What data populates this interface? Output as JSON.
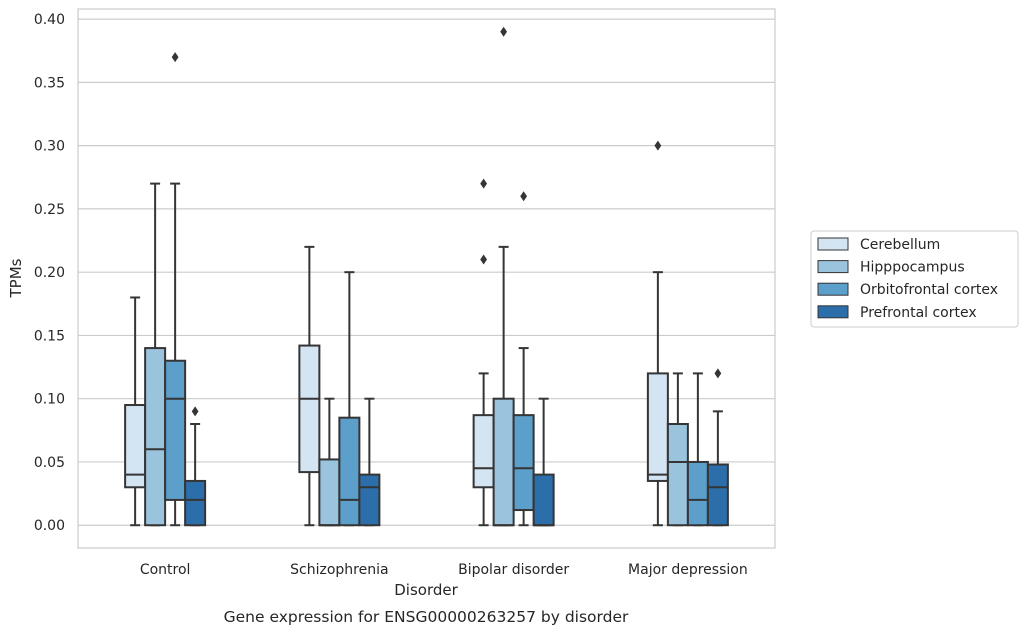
{
  "chart_data": {
    "type": "box",
    "title": "",
    "caption": "Gene expression for ENSG00000263257 by disorder",
    "xlabel": "Disorder",
    "ylabel": "TPMs",
    "ylim": [
      -0.018,
      0.408
    ],
    "yticks": [
      0.0,
      0.05,
      0.1,
      0.15,
      0.2,
      0.25,
      0.3,
      0.35,
      0.4
    ],
    "ytick_labels": [
      "0.00",
      "0.05",
      "0.10",
      "0.15",
      "0.20",
      "0.25",
      "0.30",
      "0.35",
      "0.40"
    ],
    "grid": true,
    "legend_position": "right",
    "categories": [
      "Control",
      "Schizophrenia",
      "Bipolar disorder",
      "Major depression"
    ],
    "series": [
      {
        "name": "Cerebellum",
        "color": "#d3e4f3",
        "boxes": [
          {
            "whislo": 0.0,
            "q1": 0.03,
            "med": 0.04,
            "q3": 0.095,
            "whishi": 0.18,
            "fliers": []
          },
          {
            "whislo": 0.0,
            "q1": 0.042,
            "med": 0.1,
            "q3": 0.142,
            "whishi": 0.22,
            "fliers": []
          },
          {
            "whislo": 0.0,
            "q1": 0.03,
            "med": 0.045,
            "q3": 0.087,
            "whishi": 0.12,
            "fliers": [
              0.21,
              0.27
            ]
          },
          {
            "whislo": 0.0,
            "q1": 0.035,
            "med": 0.04,
            "q3": 0.12,
            "whishi": 0.2,
            "fliers": [
              0.3
            ]
          }
        ]
      },
      {
        "name": "Hipppocampus",
        "color": "#9ac4de",
        "boxes": [
          {
            "whislo": 0.0,
            "q1": 0.0,
            "med": 0.06,
            "q3": 0.14,
            "whishi": 0.27,
            "fliers": []
          },
          {
            "whislo": 0.0,
            "q1": 0.0,
            "med": 0.0,
            "q3": 0.052,
            "whishi": 0.1,
            "fliers": []
          },
          {
            "whislo": 0.0,
            "q1": 0.0,
            "med": 0.0,
            "q3": 0.1,
            "whishi": 0.22,
            "fliers": [
              0.39
            ]
          },
          {
            "whislo": 0.0,
            "q1": 0.0,
            "med": 0.05,
            "q3": 0.08,
            "whishi": 0.12,
            "fliers": []
          }
        ]
      },
      {
        "name": "Orbitofrontal cortex",
        "color": "#5b9fca",
        "boxes": [
          {
            "whislo": 0.0,
            "q1": 0.02,
            "med": 0.1,
            "q3": 0.13,
            "whishi": 0.27,
            "fliers": [
              0.37
            ]
          },
          {
            "whislo": 0.0,
            "q1": 0.0,
            "med": 0.02,
            "q3": 0.085,
            "whishi": 0.2,
            "fliers": []
          },
          {
            "whislo": 0.0,
            "q1": 0.012,
            "med": 0.045,
            "q3": 0.087,
            "whishi": 0.14,
            "fliers": [
              0.26
            ]
          },
          {
            "whislo": 0.0,
            "q1": 0.0,
            "med": 0.02,
            "q3": 0.05,
            "whishi": 0.12,
            "fliers": []
          }
        ]
      },
      {
        "name": "Prefrontal cortex",
        "color": "#2b6ea9",
        "boxes": [
          {
            "whislo": 0.0,
            "q1": 0.0,
            "med": 0.02,
            "q3": 0.035,
            "whishi": 0.08,
            "fliers": [
              0.09
            ]
          },
          {
            "whislo": 0.0,
            "q1": 0.0,
            "med": 0.03,
            "q3": 0.04,
            "whishi": 0.1,
            "fliers": []
          },
          {
            "whislo": 0.0,
            "q1": 0.0,
            "med": 0.0,
            "q3": 0.04,
            "whishi": 0.1,
            "fliers": []
          },
          {
            "whislo": 0.0,
            "q1": 0.0,
            "med": 0.03,
            "q3": 0.048,
            "whishi": 0.09,
            "fliers": [
              0.12
            ]
          }
        ]
      }
    ]
  }
}
